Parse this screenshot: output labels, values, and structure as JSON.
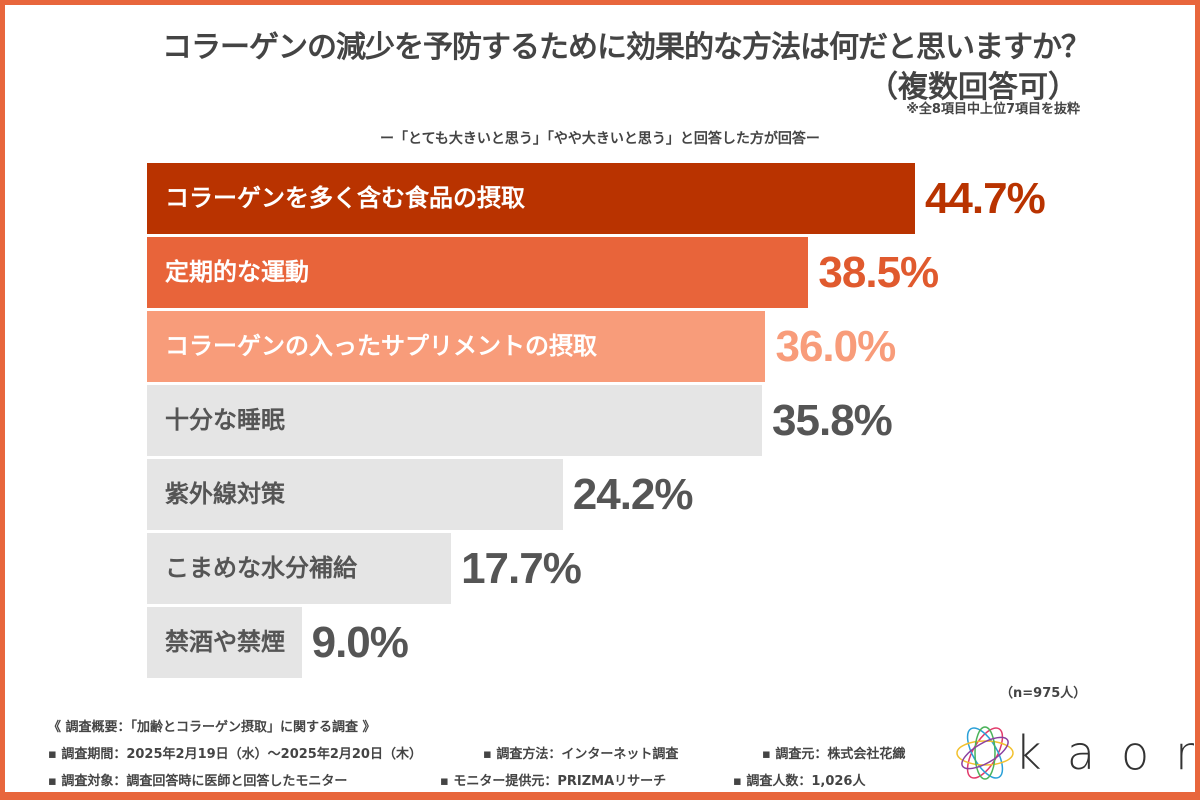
{
  "header": {
    "title": "コラーゲンの減少を予防するために効果的な方法は何だと思いますか？",
    "title_note": "（複数回答可）",
    "note": "※全8項目中上位7項目を抜粋",
    "subtitle": "ー「とても大きいと思う」「やや大きいと思う」と回答した方が回答ー"
  },
  "chart_data": {
    "type": "bar",
    "orientation": "horizontal",
    "title": "コラーゲンの減少を予防するために効果的な方法は何だと思いますか？（複数回答可）",
    "categories": [
      "コラーゲンを多く含む食品の摂取",
      "定期的な運動",
      "コラーゲンの入ったサプリメントの摂取",
      "十分な睡眠",
      "紫外線対策",
      "こまめな水分補給",
      "禁酒や禁煙"
    ],
    "values": [
      44.7,
      38.5,
      36.0,
      35.8,
      24.2,
      17.7,
      9.0
    ],
    "value_labels": [
      "44.7%",
      "38.5%",
      "36.0%",
      "35.8%",
      "24.2%",
      "17.7%",
      "9.0%"
    ],
    "bar_colors": [
      "#b93300",
      "#e8643a",
      "#f89c7a",
      "#e5e5e5",
      "#e5e5e5",
      "#e5e5e5",
      "#e5e5e5"
    ],
    "label_colors": [
      "#ffffff",
      "#ffffff",
      "#ffffff",
      "#555555",
      "#555555",
      "#555555",
      "#555555"
    ],
    "value_colors": [
      "#b93300",
      "#e05a2e",
      "#f89c7a",
      "#555555",
      "#555555",
      "#555555",
      "#555555"
    ],
    "xlim": [
      0,
      50
    ]
  },
  "sample": "（n=975人）",
  "footer": {
    "heading": "《 調査概要：「加齢とコラーゲン摂取」に関する調査 》",
    "row1": [
      "▪ 調査期間：2025年2月19日（水）～2025年2月20日（木）",
      "▪ 調査方法：インターネット調査",
      "▪ 調査元：株式会社花織"
    ],
    "row2": [
      "▪ 調査対象：調査回答時に医師と回答したモニター",
      "▪ モニター提供元：PRIZMAリサーチ",
      "▪ 調査人数：1,026人"
    ]
  },
  "logo": {
    "text": "kaori"
  },
  "colors": {
    "frame": "#e8663c"
  }
}
